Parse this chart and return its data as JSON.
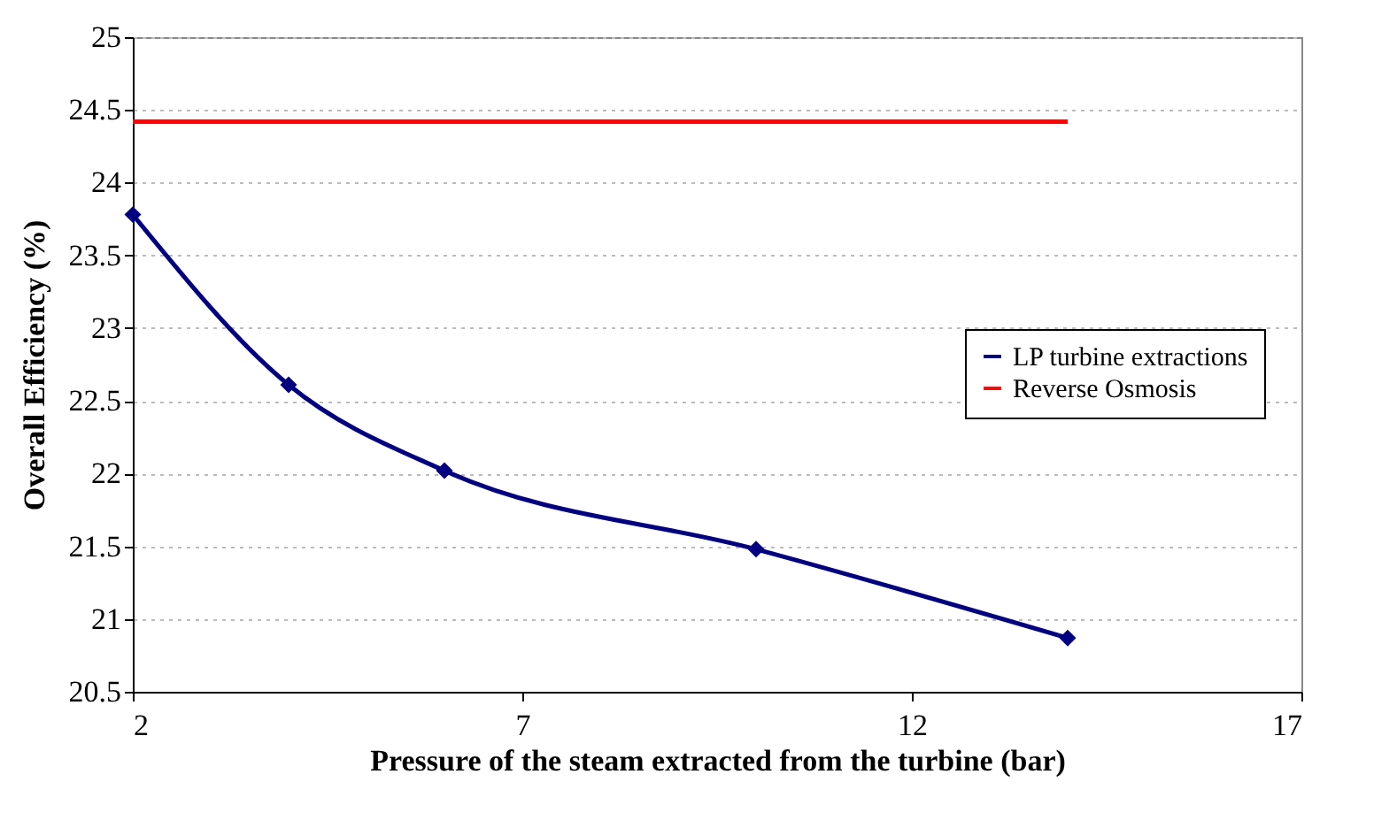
{
  "chart_data": {
    "type": "line",
    "xlabel": "Pressure of the steam extracted from the turbine (bar)",
    "ylabel": "Overall Efficiency (%)",
    "x": [
      2,
      4,
      6,
      10,
      14
    ],
    "series": [
      {
        "name": "LP turbine extractions",
        "color": "#000080",
        "values": [
          23.78,
          22.61,
          22.02,
          21.48,
          20.87
        ],
        "marker": "diamond"
      },
      {
        "name": "Reverse Osmosis",
        "color": "#ff0000",
        "x": [
          2,
          14
        ],
        "values": [
          24.42,
          24.42
        ],
        "marker": "none"
      }
    ],
    "xlim": [
      2,
      17
    ],
    "xticks": [
      2,
      7,
      12,
      17
    ],
    "ylim": [
      20.5,
      25
    ],
    "yticks": [
      20.5,
      21,
      21.5,
      22,
      22.5,
      23,
      23.5,
      24,
      24.5,
      25
    ],
    "grid": "y",
    "legend": "right"
  }
}
